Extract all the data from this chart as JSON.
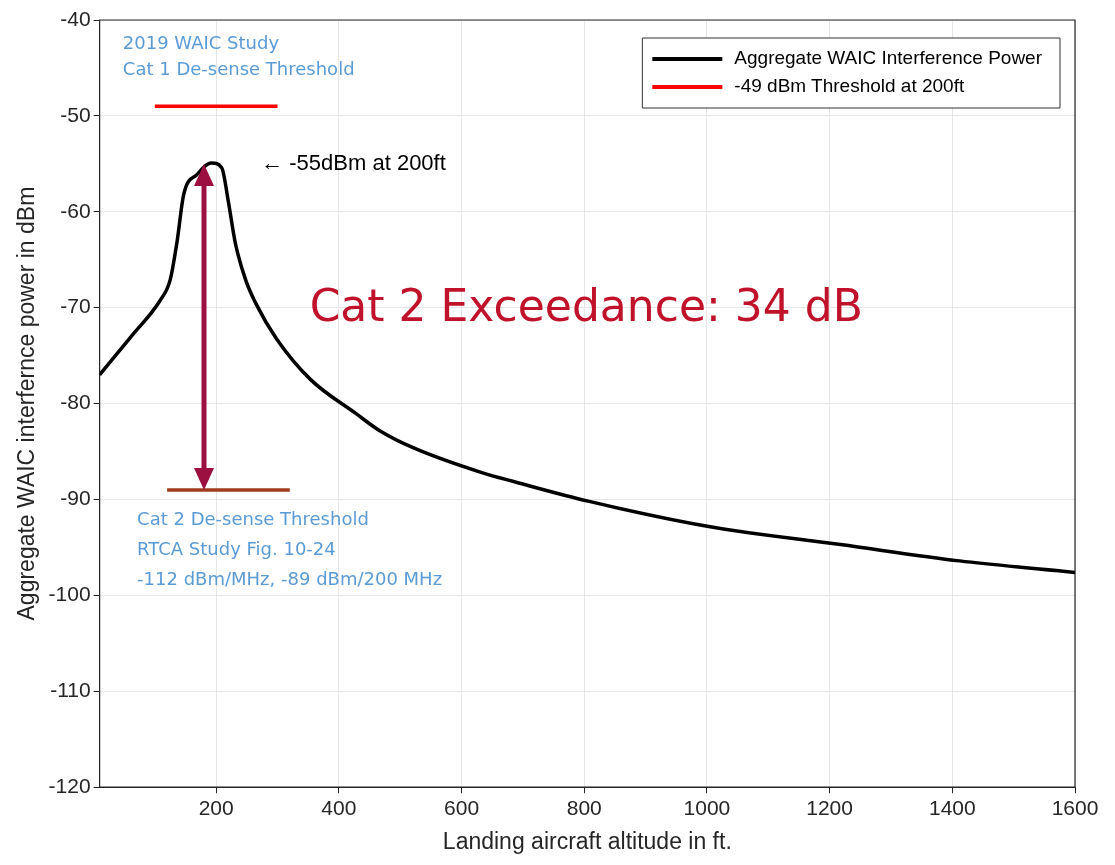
{
  "chart_data": {
    "type": "line",
    "xlabel": "Landing aircraft altitude in ft.",
    "ylabel": "Aggregate WAIC interfernce power in dBm",
    "series": [
      {
        "name": "Aggregate WAIC Interference Power",
        "color": "#000000",
        "x": [
          10,
          64,
          108,
          125,
          136,
          147,
          169,
          192,
          209,
          220,
          231,
          248,
          265,
          298,
          354,
          427,
          466,
          521,
          633,
          689,
          808,
          1010,
          1218,
          1412,
          1600
        ],
        "values": [
          -77,
          -72.8,
          -69.3,
          -67.1,
          -63.2,
          -58.2,
          -56.1,
          -54.9,
          -55.4,
          -59,
          -63.2,
          -67.1,
          -69.6,
          -73.2,
          -77.5,
          -81,
          -82.8,
          -84.6,
          -87.2,
          -88.2,
          -90.2,
          -92.9,
          -94.7,
          -96.4,
          -97.6
        ]
      },
      {
        "name": "-49 dBm Threshold at 200ft",
        "color": "#ff0000",
        "x": [
          100,
          300
        ],
        "values": [
          -49,
          -49
        ]
      },
      {
        "color": "#a03c1e",
        "x": [
          120,
          320
        ],
        "values": [
          -89,
          -89
        ]
      }
    ],
    "xlim": [
      10,
      1600
    ],
    "xticks": [
      200,
      400,
      600,
      800,
      1000,
      1200,
      1400,
      1600
    ],
    "ylim": [
      -120,
      -40
    ],
    "yticks": [
      -120,
      -110,
      -100,
      -90,
      -80,
      -70,
      -60,
      -50,
      -40
    ],
    "grid": true,
    "legend": "top right",
    "marker": "none",
    "line_style": "solid",
    "annotations": [
      {
        "text": "← -55dBm at 200ft",
        "x": 200,
        "y": -55
      },
      "Cat 2 Exceedance: 34 dB",
      {
        "text": "2019 WAIC Study\nCat 1 De-sense Threshold",
        "x": 100,
        "y": -49
      },
      {
        "text": "Cat 2 De-sense Threshold\nRTCA Study Fig. 10-24\n-112 dBm/MHz, -89 dBm/200 MHz",
        "x": 120,
        "y": -89
      }
    ]
  }
}
